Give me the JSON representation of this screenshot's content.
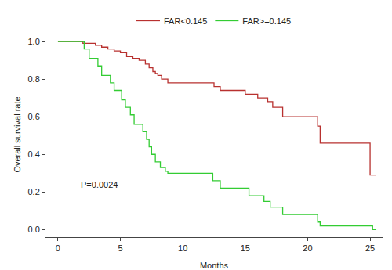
{
  "chart_data": {
    "type": "step",
    "x_label": "Months",
    "y_label": "Overall survival rate",
    "xlim": [
      -1,
      26
    ],
    "xticks": [
      0,
      5,
      10,
      15,
      20,
      25
    ],
    "ylim": [
      -0.04,
      1.05
    ],
    "yticks": [
      {
        "value": 0,
        "label": "0.0"
      },
      0.2,
      0.4,
      0.6,
      0.8,
      {
        "value": 1,
        "label": "1.0"
      }
    ],
    "grid": false,
    "legend": "top",
    "annotations": [
      {
        "text": "P=0.0024",
        "x": 1.7,
        "y": 0.24
      }
    ],
    "series": [
      {
        "name": "FAR<0.145",
        "color": "#b8312f",
        "line_style": "solid",
        "x": [
          0,
          2,
          3,
          3.5,
          4,
          4.5,
          5,
          5.5,
          6,
          6.5,
          7,
          7.3,
          7.6,
          7.8,
          8,
          8.3,
          8.8,
          12.5,
          13,
          15,
          16,
          16.8,
          17.2,
          18,
          20.8,
          21,
          25,
          25.5
        ],
        "values": [
          1.0,
          0.99,
          0.98,
          0.97,
          0.96,
          0.95,
          0.94,
          0.92,
          0.91,
          0.9,
          0.88,
          0.86,
          0.84,
          0.83,
          0.82,
          0.8,
          0.78,
          0.76,
          0.74,
          0.72,
          0.7,
          0.68,
          0.65,
          0.6,
          0.55,
          0.46,
          0.29,
          0.29
        ]
      },
      {
        "name": "FAR>=0.145",
        "color": "#33cc33",
        "line_style": "solid",
        "x": [
          0,
          2.1,
          2.5,
          3.2,
          3.5,
          4.2,
          4.5,
          5.1,
          5.4,
          5.8,
          6.1,
          6.8,
          7.1,
          7.3,
          7.5,
          7.8,
          8.2,
          8.6,
          8.8,
          12.4,
          13,
          15.3,
          16.5,
          17,
          18,
          20.8,
          21,
          25.2,
          25.5
        ],
        "values": [
          1.0,
          0.96,
          0.91,
          0.87,
          0.82,
          0.78,
          0.74,
          0.69,
          0.65,
          0.61,
          0.56,
          0.52,
          0.48,
          0.44,
          0.4,
          0.36,
          0.33,
          0.31,
          0.3,
          0.26,
          0.22,
          0.18,
          0.15,
          0.12,
          0.08,
          0.04,
          0.02,
          0.0,
          0.0
        ]
      }
    ]
  }
}
